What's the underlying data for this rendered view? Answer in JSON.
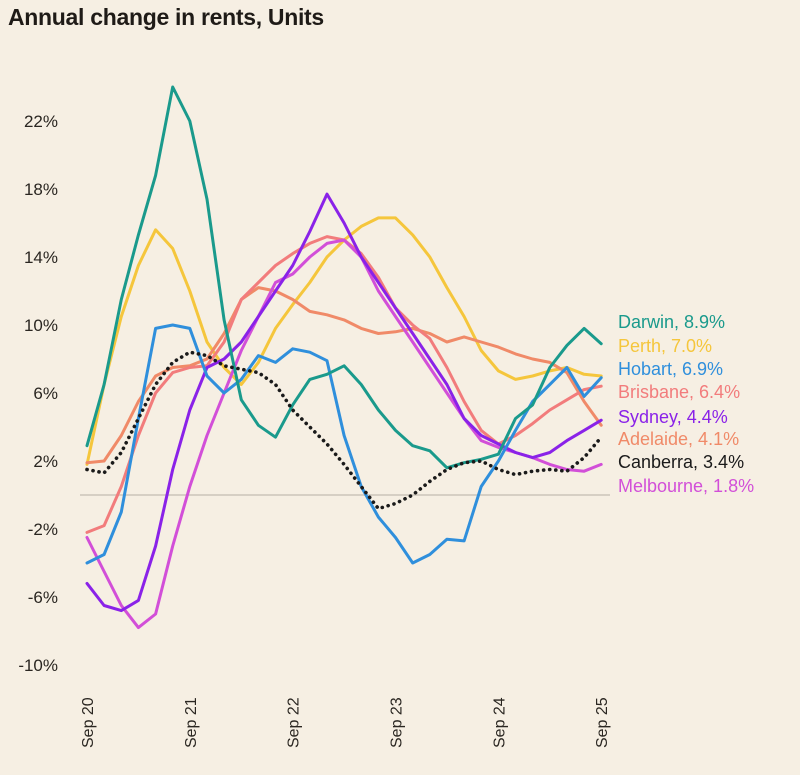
{
  "chart_data": {
    "type": "line",
    "title": "Annual change in rents, Units",
    "xlabel": "",
    "ylabel": "",
    "ylim": [
      -10,
      25
    ],
    "yticks": [
      -10,
      -6,
      -2,
      2,
      6,
      10,
      14,
      18,
      22
    ],
    "ytick_labels": [
      "-10%",
      "-6%",
      "-2%",
      "2%",
      "6%",
      "10%",
      "14%",
      "18%",
      "22%"
    ],
    "xticks": [
      "Sep 20",
      "Sep 21",
      "Sep 22",
      "Sep 23",
      "Sep 24",
      "Sep 25"
    ],
    "x_unit": "months since Sep 2020",
    "x": [
      0,
      2,
      4,
      6,
      8,
      10,
      12,
      14,
      16,
      18,
      20,
      22,
      24,
      26,
      28,
      30,
      32,
      34,
      36,
      38,
      40,
      42,
      44,
      46,
      48,
      50,
      52,
      54,
      56,
      58,
      60
    ],
    "zero_line": true,
    "grid": false,
    "legend_position": "right (end-of-line labels)",
    "series": [
      {
        "name": "Darwin",
        "label": "Darwin, 8.9%",
        "color": "#1a9a8c",
        "values": [
          2.9,
          6.5,
          11.5,
          15.3,
          18.8,
          24.0,
          22.0,
          17.4,
          10.3,
          5.6,
          4.1,
          3.4,
          5.3,
          6.8,
          7.1,
          7.6,
          6.5,
          5.0,
          3.8,
          2.9,
          2.6,
          1.6,
          1.9,
          2.1,
          2.4,
          4.5,
          5.3,
          7.5,
          8.8,
          9.8,
          8.9
        ]
      },
      {
        "name": "Perth",
        "label": "Perth, 7.0%",
        "color": "#f5c63c",
        "values": [
          1.8,
          6.5,
          10.5,
          13.5,
          15.6,
          14.5,
          12.0,
          9.0,
          7.5,
          6.5,
          7.8,
          9.8,
          11.2,
          12.5,
          14.0,
          15.0,
          15.8,
          16.3,
          16.3,
          15.3,
          14.0,
          12.2,
          10.5,
          8.5,
          7.3,
          6.8,
          7.0,
          7.3,
          7.5,
          7.1,
          7.0
        ]
      },
      {
        "name": "Hobart",
        "label": "Hobart, 6.9%",
        "color": "#2f8fdc",
        "values": [
          -4.0,
          -3.5,
          -1.0,
          4.5,
          9.8,
          10.0,
          9.8,
          7.0,
          6.0,
          6.8,
          8.2,
          7.8,
          8.6,
          8.4,
          7.9,
          3.5,
          0.5,
          -1.3,
          -2.5,
          -4.0,
          -3.5,
          -2.6,
          -2.7,
          0.5,
          2.0,
          3.8,
          5.5,
          6.5,
          7.5,
          5.8,
          6.9
        ]
      },
      {
        "name": "Brisbane",
        "label": "Brisbane, 6.4%",
        "color": "#f27c7c",
        "values": [
          -2.2,
          -1.8,
          0.5,
          3.5,
          6.0,
          7.2,
          7.5,
          7.6,
          9.0,
          11.5,
          12.5,
          13.5,
          14.2,
          14.8,
          15.2,
          15.0,
          14.2,
          12.8,
          11.0,
          10.0,
          9.2,
          7.5,
          5.5,
          3.8,
          3.0,
          3.5,
          4.2,
          5.0,
          5.6,
          6.2,
          6.4
        ]
      },
      {
        "name": "Sydney",
        "label": "Sydney, 4.4%",
        "color": "#8a22e8",
        "values": [
          -5.2,
          -6.5,
          -6.8,
          -6.2,
          -3.0,
          1.5,
          5.0,
          7.5,
          8.0,
          9.0,
          10.5,
          12.0,
          13.5,
          15.5,
          17.7,
          16.0,
          14.0,
          12.5,
          11.0,
          9.5,
          8.0,
          6.5,
          4.5,
          3.5,
          3.0,
          2.5,
          2.2,
          2.5,
          3.2,
          3.8,
          4.4
        ]
      },
      {
        "name": "Adelaide",
        "label": "Adelaide, 4.1%",
        "color": "#f08a68",
        "values": [
          1.9,
          2.0,
          3.5,
          5.5,
          7.0,
          7.5,
          7.6,
          8.0,
          9.5,
          11.5,
          12.2,
          12.0,
          11.5,
          10.8,
          10.6,
          10.3,
          9.8,
          9.5,
          9.6,
          9.8,
          9.5,
          9.0,
          9.3,
          9.0,
          8.7,
          8.3,
          8.0,
          7.8,
          7.2,
          5.5,
          4.1
        ]
      },
      {
        "name": "Canberra",
        "label": "Canberra, 3.4%",
        "color": "#1a1a1a",
        "dash": "dotted",
        "values": [
          1.5,
          1.3,
          2.5,
          4.5,
          6.5,
          7.8,
          8.4,
          8.2,
          7.6,
          7.4,
          7.2,
          6.5,
          5.0,
          4.0,
          3.0,
          1.8,
          0.5,
          -0.8,
          -0.5,
          0.0,
          0.8,
          1.5,
          1.9,
          2.0,
          1.5,
          1.2,
          1.4,
          1.5,
          1.4,
          2.2,
          3.4
        ]
      },
      {
        "name": "Melbourne",
        "label": "Melbourne, 1.8%",
        "color": "#d24fd8",
        "values": [
          -2.5,
          -4.5,
          -6.5,
          -7.8,
          -7.0,
          -3.0,
          0.5,
          3.5,
          6.0,
          8.5,
          10.5,
          12.5,
          13.0,
          14.0,
          14.8,
          15.0,
          14.0,
          12.0,
          10.5,
          9.0,
          7.5,
          6.0,
          4.5,
          3.2,
          2.8,
          2.5,
          2.2,
          1.8,
          1.5,
          1.4,
          1.8
        ]
      }
    ]
  }
}
